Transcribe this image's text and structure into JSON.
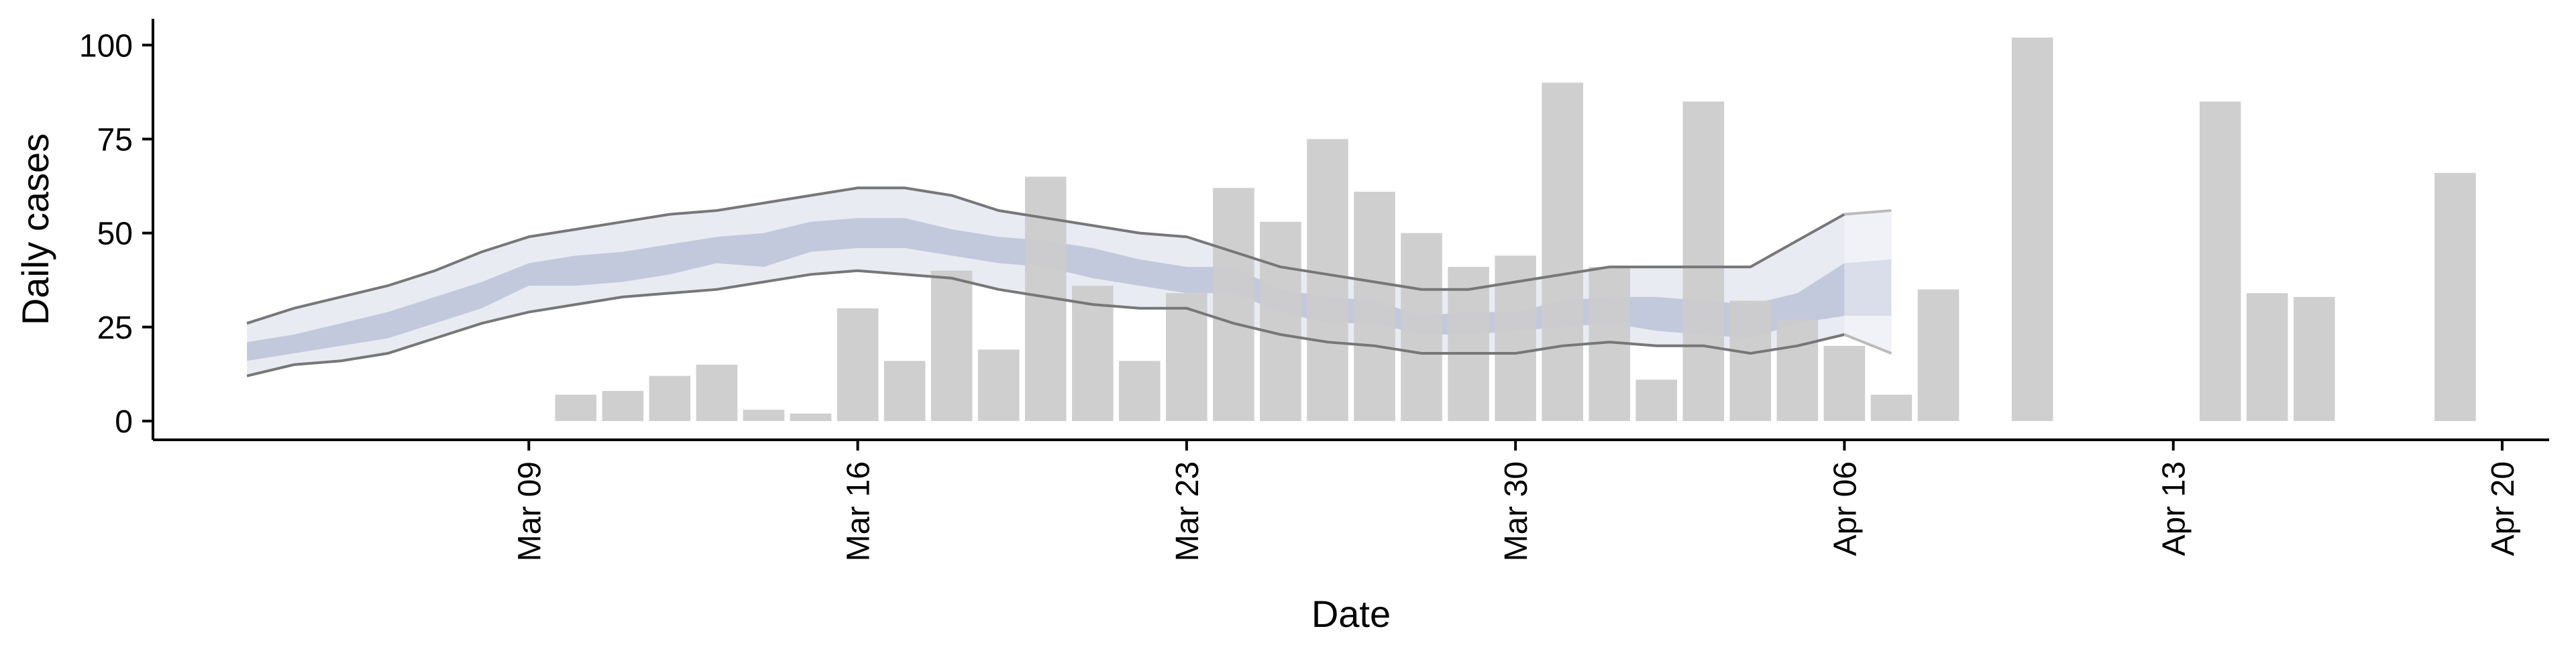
{
  "chart_data": {
    "type": "bar",
    "xlabel": "Date",
    "ylabel": "Daily cases",
    "ylim": [
      -5,
      107
    ],
    "yticks": [
      0,
      25,
      50,
      75,
      100
    ],
    "xlim": [
      "2020-03-01",
      "2020-04-21"
    ],
    "xticks": [
      {
        "date": "2020-03-09",
        "label": "Mar 09"
      },
      {
        "date": "2020-03-16",
        "label": "Mar 16"
      },
      {
        "date": "2020-03-23",
        "label": "Mar 23"
      },
      {
        "date": "2020-03-30",
        "label": "Mar 30"
      },
      {
        "date": "2020-04-06",
        "label": "Apr 06"
      },
      {
        "date": "2020-04-13",
        "label": "Apr 13"
      },
      {
        "date": "2020-04-20",
        "label": "Apr 20"
      }
    ],
    "grid": false,
    "colors": {
      "bars": "#cccccc",
      "band_outer": "#e9ebf3",
      "band_inner": "#c3c9dc",
      "band_outer_projection": "#f1f2f7",
      "band_inner_projection": "#dadeea",
      "bound_lines": "#777777",
      "bound_lines_projection": "#bbbbbb"
    },
    "bars": [
      {
        "date": "2020-03-10",
        "value": 7
      },
      {
        "date": "2020-03-11",
        "value": 8
      },
      {
        "date": "2020-03-12",
        "value": 12
      },
      {
        "date": "2020-03-13",
        "value": 15
      },
      {
        "date": "2020-03-14",
        "value": 3
      },
      {
        "date": "2020-03-15",
        "value": 2
      },
      {
        "date": "2020-03-16",
        "value": 30
      },
      {
        "date": "2020-03-17",
        "value": 16
      },
      {
        "date": "2020-03-18",
        "value": 40
      },
      {
        "date": "2020-03-19",
        "value": 19
      },
      {
        "date": "2020-03-20",
        "value": 65
      },
      {
        "date": "2020-03-21",
        "value": 36
      },
      {
        "date": "2020-03-22",
        "value": 16
      },
      {
        "date": "2020-03-23",
        "value": 34
      },
      {
        "date": "2020-03-24",
        "value": 62
      },
      {
        "date": "2020-03-25",
        "value": 53
      },
      {
        "date": "2020-03-26",
        "value": 75
      },
      {
        "date": "2020-03-27",
        "value": 61
      },
      {
        "date": "2020-03-28",
        "value": 50
      },
      {
        "date": "2020-03-29",
        "value": 41
      },
      {
        "date": "2020-03-30",
        "value": 44
      },
      {
        "date": "2020-03-31",
        "value": 90
      },
      {
        "date": "2020-04-01",
        "value": 41
      },
      {
        "date": "2020-04-02",
        "value": 11
      },
      {
        "date": "2020-04-03",
        "value": 85
      },
      {
        "date": "2020-04-04",
        "value": 32
      },
      {
        "date": "2020-04-05",
        "value": 27
      },
      {
        "date": "2020-04-06",
        "value": 20
      },
      {
        "date": "2020-04-07",
        "value": 7
      },
      {
        "date": "2020-04-08",
        "value": 35
      },
      {
        "date": "2020-04-10",
        "value": 102
      },
      {
        "date": "2020-04-14",
        "value": 85
      },
      {
        "date": "2020-04-15",
        "value": 34
      },
      {
        "date": "2020-04-16",
        "value": 33
      },
      {
        "date": "2020-04-19",
        "value": 66
      }
    ],
    "band": {
      "projection_start": "2020-04-06",
      "points": [
        {
          "date": "2020-03-03",
          "lo95": 12,
          "lo50": 16,
          "hi50": 21,
          "hi95": 26
        },
        {
          "date": "2020-03-04",
          "lo95": 15,
          "lo50": 18,
          "hi50": 23,
          "hi95": 30
        },
        {
          "date": "2020-03-05",
          "lo95": 16,
          "lo50": 20,
          "hi50": 26,
          "hi95": 33
        },
        {
          "date": "2020-03-06",
          "lo95": 18,
          "lo50": 22,
          "hi50": 29,
          "hi95": 36
        },
        {
          "date": "2020-03-07",
          "lo95": 22,
          "lo50": 26,
          "hi50": 33,
          "hi95": 40
        },
        {
          "date": "2020-03-08",
          "lo95": 26,
          "lo50": 30,
          "hi50": 37,
          "hi95": 45
        },
        {
          "date": "2020-03-09",
          "lo95": 29,
          "lo50": 36,
          "hi50": 42,
          "hi95": 49
        },
        {
          "date": "2020-03-10",
          "lo95": 31,
          "lo50": 36,
          "hi50": 44,
          "hi95": 51
        },
        {
          "date": "2020-03-11",
          "lo95": 33,
          "lo50": 37,
          "hi50": 45,
          "hi95": 53
        },
        {
          "date": "2020-03-12",
          "lo95": 34,
          "lo50": 39,
          "hi50": 47,
          "hi95": 55
        },
        {
          "date": "2020-03-13",
          "lo95": 35,
          "lo50": 42,
          "hi50": 49,
          "hi95": 56
        },
        {
          "date": "2020-03-14",
          "lo95": 37,
          "lo50": 41,
          "hi50": 50,
          "hi95": 58
        },
        {
          "date": "2020-03-15",
          "lo95": 39,
          "lo50": 45,
          "hi50": 53,
          "hi95": 60
        },
        {
          "date": "2020-03-16",
          "lo95": 40,
          "lo50": 46,
          "hi50": 54,
          "hi95": 62
        },
        {
          "date": "2020-03-17",
          "lo95": 39,
          "lo50": 46,
          "hi50": 54,
          "hi95": 62
        },
        {
          "date": "2020-03-18",
          "lo95": 38,
          "lo50": 44,
          "hi50": 51,
          "hi95": 60
        },
        {
          "date": "2020-03-19",
          "lo95": 35,
          "lo50": 42,
          "hi50": 49,
          "hi95": 56
        },
        {
          "date": "2020-03-20",
          "lo95": 33,
          "lo50": 41,
          "hi50": 48,
          "hi95": 54
        },
        {
          "date": "2020-03-21",
          "lo95": 31,
          "lo50": 38,
          "hi50": 46,
          "hi95": 52
        },
        {
          "date": "2020-03-22",
          "lo95": 30,
          "lo50": 36,
          "hi50": 43,
          "hi95": 50
        },
        {
          "date": "2020-03-23",
          "lo95": 30,
          "lo50": 34,
          "hi50": 41,
          "hi95": 49
        },
        {
          "date": "2020-03-24",
          "lo95": 26,
          "lo50": 34,
          "hi50": 41,
          "hi95": 45
        },
        {
          "date": "2020-03-25",
          "lo95": 23,
          "lo50": 29,
          "hi50": 35,
          "hi95": 41
        },
        {
          "date": "2020-03-26",
          "lo95": 21,
          "lo50": 26,
          "hi50": 33,
          "hi95": 39
        },
        {
          "date": "2020-03-27",
          "lo95": 20,
          "lo50": 26,
          "hi50": 32,
          "hi95": 37
        },
        {
          "date": "2020-03-28",
          "lo95": 18,
          "lo50": 23,
          "hi50": 28,
          "hi95": 35
        },
        {
          "date": "2020-03-29",
          "lo95": 18,
          "lo50": 23,
          "hi50": 29,
          "hi95": 35
        },
        {
          "date": "2020-03-30",
          "lo95": 18,
          "lo50": 24,
          "hi50": 29,
          "hi95": 37
        },
        {
          "date": "2020-03-31",
          "lo95": 20,
          "lo50": 25,
          "hi50": 32,
          "hi95": 39
        },
        {
          "date": "2020-04-01",
          "lo95": 21,
          "lo50": 26,
          "hi50": 33,
          "hi95": 41
        },
        {
          "date": "2020-04-02",
          "lo95": 20,
          "lo50": 24,
          "hi50": 33,
          "hi95": 41
        },
        {
          "date": "2020-04-03",
          "lo95": 20,
          "lo50": 23,
          "hi50": 32,
          "hi95": 41
        },
        {
          "date": "2020-04-04",
          "lo95": 18,
          "lo50": 22,
          "hi50": 31,
          "hi95": 41
        },
        {
          "date": "2020-04-05",
          "lo95": 20,
          "lo50": 26,
          "hi50": 34,
          "hi95": 48
        },
        {
          "date": "2020-04-06",
          "lo95": 23,
          "lo50": 28,
          "hi50": 42,
          "hi95": 55
        },
        {
          "date": "2020-04-07",
          "lo95": 18,
          "lo50": 28,
          "hi50": 43,
          "hi95": 56
        }
      ]
    }
  }
}
